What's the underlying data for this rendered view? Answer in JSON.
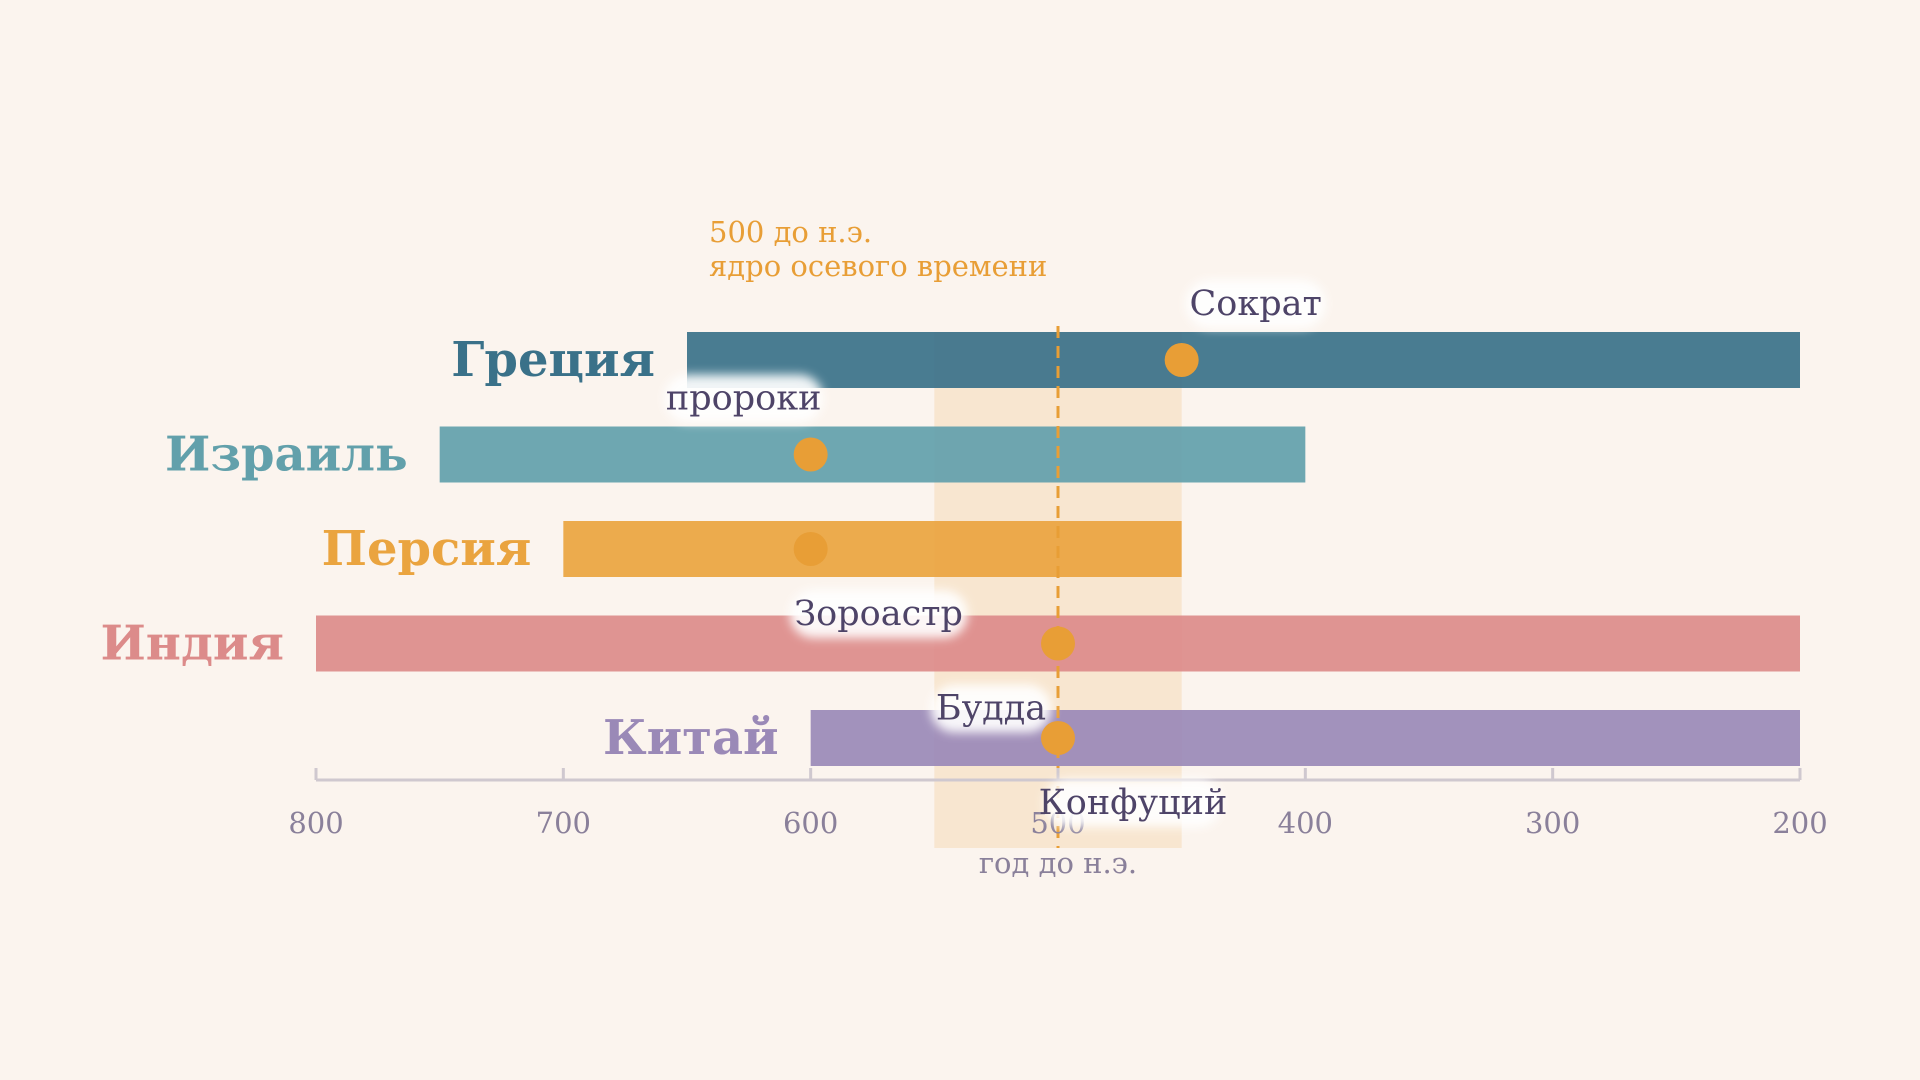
{
  "chart_data": {
    "type": "bar",
    "orientation": "horizontal-range",
    "xlabel": "год до н.э.",
    "x_axis": {
      "range": [
        800,
        200
      ],
      "direction": "reversed",
      "ticks": [
        800,
        700,
        600,
        500,
        400,
        300,
        200
      ],
      "tick_labels": [
        "800",
        "700",
        "600",
        "500",
        "400",
        "300",
        "200"
      ]
    },
    "series": [
      {
        "name": "Греция",
        "start": 650,
        "end": 200,
        "color": "#3a7189"
      },
      {
        "name": "Израиль",
        "start": 750,
        "end": 400,
        "color": "#62a0ab"
      },
      {
        "name": "Персия",
        "start": 700,
        "end": 450,
        "color": "#eaa43f"
      },
      {
        "name": "Индия",
        "start": 800,
        "end": 200,
        "color": "#dc8b8a"
      },
      {
        "name": "Китай",
        "start": 600,
        "end": 200,
        "color": "#9a89b7"
      }
    ],
    "highlight_band": {
      "from": 550,
      "to": 450,
      "color": "#f7e1c5"
    },
    "reference_line": {
      "x": 500,
      "color": "#e89e36",
      "annotation": [
        "500 до н.э.",
        "ядро осевого времени"
      ]
    },
    "markers": [
      {
        "series": "Греция",
        "x": 450,
        "label": "Сократ",
        "label_side": "above"
      },
      {
        "series": "Израиль",
        "x": 600,
        "label": "пророки",
        "label_side": "above"
      },
      {
        "series": "Персия",
        "x": 600,
        "label": "Зороастр",
        "label_side": "below"
      },
      {
        "series": "Индия",
        "x": 500,
        "label": "Будда",
        "label_side": "below"
      },
      {
        "series": "Китай",
        "x": 500,
        "label": "Конфуций",
        "label_side": "below"
      }
    ],
    "marker_color": "#e89e36",
    "grid": false,
    "legend": "none"
  }
}
